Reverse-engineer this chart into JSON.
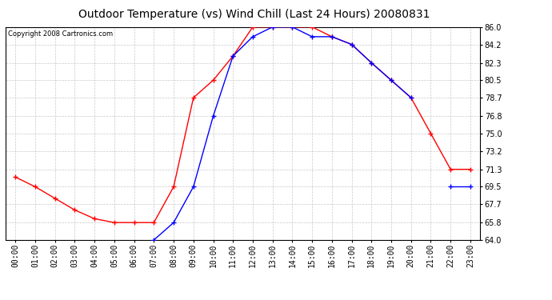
{
  "title": "Outdoor Temperature (vs) Wind Chill (Last 24 Hours) 20080831",
  "copyright": "Copyright 2008 Cartronics.com",
  "x_labels": [
    "00:00",
    "01:00",
    "02:00",
    "03:00",
    "04:00",
    "05:00",
    "06:00",
    "07:00",
    "08:00",
    "09:00",
    "10:00",
    "11:00",
    "12:00",
    "13:00",
    "14:00",
    "15:00",
    "16:00",
    "17:00",
    "18:00",
    "19:00",
    "20:00",
    "21:00",
    "22:00",
    "23:00"
  ],
  "temp_red": [
    70.5,
    69.5,
    68.3,
    67.1,
    66.2,
    65.8,
    65.8,
    65.8,
    69.5,
    78.7,
    80.5,
    83.0,
    86.0,
    86.0,
    86.0,
    86.0,
    85.0,
    84.2,
    82.3,
    80.5,
    78.7,
    75.0,
    71.3,
    71.3
  ],
  "wind_chill_blue": [
    null,
    null,
    null,
    null,
    null,
    null,
    null,
    64.0,
    65.8,
    69.5,
    76.8,
    83.0,
    85.0,
    86.0,
    86.0,
    85.0,
    85.0,
    84.2,
    82.3,
    80.5,
    78.7,
    null,
    69.5,
    69.5
  ],
  "ylim_min": 64.0,
  "ylim_max": 86.0,
  "yticks": [
    64.0,
    65.8,
    67.7,
    69.5,
    71.3,
    73.2,
    75.0,
    76.8,
    78.7,
    80.5,
    82.3,
    84.2,
    86.0
  ],
  "line_color_red": "#ff0000",
  "line_color_blue": "#0000ff",
  "background_color": "#ffffff",
  "plot_bg_color": "#ffffff",
  "grid_color": "#bbbbbb",
  "title_fontsize": 10,
  "tick_fontsize": 7,
  "copyright_fontsize": 6
}
